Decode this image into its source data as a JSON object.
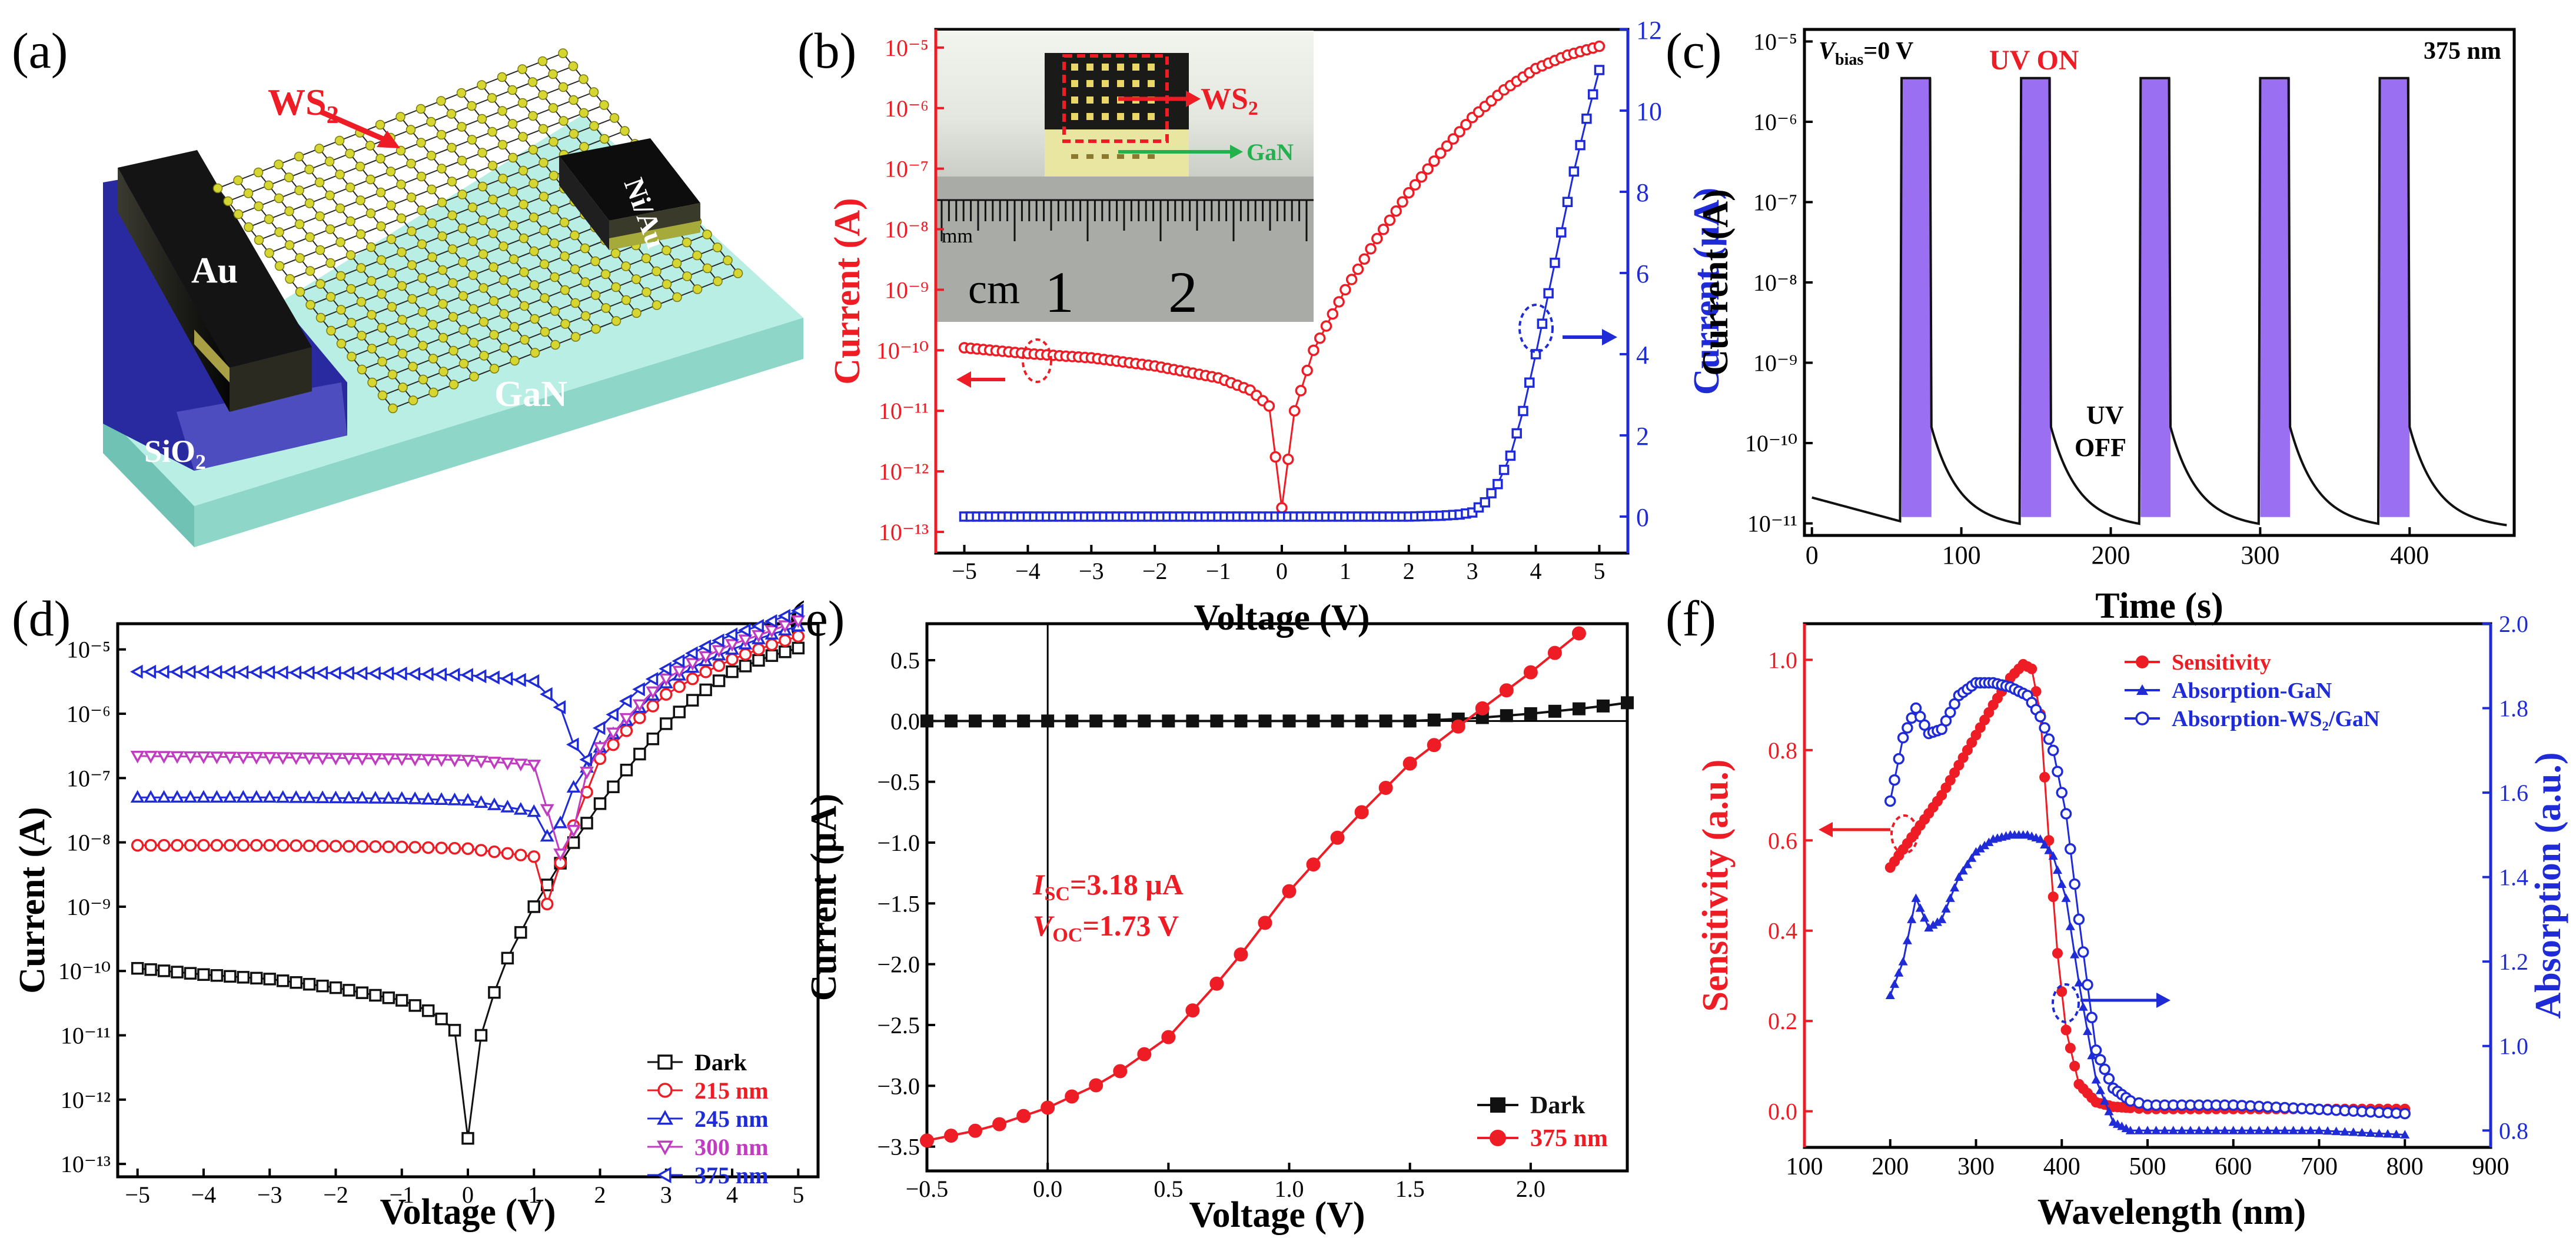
{
  "panel_labels": [
    "(a)",
    "(b)",
    "(c)",
    "(d)",
    "(e)",
    "(f)"
  ],
  "colors": {
    "red": "#ee1c25",
    "blue": "#1f2bd6",
    "magenta": "#c03cc0",
    "purple": "#9b6ff2",
    "black": "#111111",
    "gan": "#b8eee4",
    "sio2": "#2a2aa0",
    "ws2_atom": "#d6d632"
  },
  "schematic": {
    "ws2": "WS",
    "ws2_sub": "2",
    "niau": "Ni/Au",
    "au": "Au",
    "sio2": "SiO",
    "sio2_sub": "2",
    "gan": "GaN"
  },
  "chart_data": [
    {
      "panel": "(b)",
      "type": "line",
      "xlabel": "Voltage (V)",
      "ylabel_left": "Current (A)",
      "ylabel_right": "Current (μA)",
      "xlim": [
        -5,
        5
      ],
      "xticks": [
        "−5",
        "−4",
        "−3",
        "−2",
        "−1",
        "0",
        "1",
        "2",
        "3",
        "4",
        "5"
      ],
      "ylim_left_log": [
        -13,
        -5
      ],
      "yticks_left": [
        "10⁻¹³",
        "10⁻¹²",
        "10⁻¹¹",
        "10⁻¹⁰",
        "10⁻⁹",
        "10⁻⁸",
        "10⁻⁷",
        "10⁻⁶",
        "10⁻⁵"
      ],
      "ylim_right": [
        0,
        12
      ],
      "yticks_right": [
        "0",
        "2",
        "4",
        "6",
        "8",
        "10",
        "12"
      ],
      "inset": {
        "ws2": "WS",
        "ws2_sub": "2",
        "gan": "GaN",
        "mm": "mm",
        "cm": "cm",
        "one": "1",
        "two": "2"
      },
      "series": [
        {
          "name": "log current",
          "axis": "left",
          "x": [
            -5,
            -4,
            -3,
            -2,
            -1,
            -0.5,
            -0.2,
            0,
            0.2,
            0.5,
            1,
            1.5,
            2,
            2.5,
            3,
            3.5,
            4,
            4.5,
            5
          ],
          "values": [
            1.1e-10,
            8.8e-11,
            7.5e-11,
            5.5e-11,
            3.5e-11,
            2.2e-11,
            1.2e-11,
            2.5e-13,
            1e-11,
            1e-10,
            1e-09,
            7e-09,
            4e-08,
            1.8e-07,
            7e-07,
            2e-06,
            4.5e-06,
            7.5e-06,
            1.05e-05
          ]
        },
        {
          "name": "linear current",
          "axis": "right",
          "x": [
            -5,
            -2,
            0,
            2,
            2.5,
            2.8,
            3,
            3.2,
            3.4,
            3.6,
            3.8,
            4,
            4.2,
            4.4,
            4.6,
            4.8,
            5
          ],
          "values": [
            0,
            0,
            0,
            0,
            0.02,
            0.05,
            0.1,
            0.35,
            0.8,
            1.5,
            2.6,
            4,
            5.5,
            7,
            8.5,
            9.8,
            11
          ]
        }
      ]
    },
    {
      "panel": "(c)",
      "type": "line",
      "xlabel": "Time (s)",
      "ylabel": "Current (A)",
      "xlim": [
        -5,
        470
      ],
      "xticks": [
        "0",
        "100",
        "200",
        "300",
        "400"
      ],
      "ylim_log": [
        -11.15,
        -4.85
      ],
      "yticks": [
        "10⁻¹¹",
        "10⁻¹⁰",
        "10⁻⁹",
        "10⁻⁸",
        "10⁻⁷",
        "10⁻⁶",
        "10⁻⁵"
      ],
      "annotations": {
        "vbias": "V",
        "vbias_sub": "bias",
        "vbias_val": "=0 V",
        "uv_on": "UV ON",
        "wavelength": "375 nm",
        "uv_off_1": "UV",
        "uv_off_2": "OFF"
      },
      "pulses_on": [
        [
          60,
          80
        ],
        [
          140,
          160
        ],
        [
          220,
          240
        ],
        [
          300,
          320
        ],
        [
          380,
          400
        ]
      ],
      "on_current": 3.5e-06,
      "dark_current": 1.2e-11
    },
    {
      "panel": "(d)",
      "type": "line",
      "xlabel": "Voltage (V)",
      "ylabel": "Current (A)",
      "xlim": [
        -5.3,
        5.3
      ],
      "xticks": [
        "−5",
        "−4",
        "−3",
        "−2",
        "−1",
        "0",
        "1",
        "2",
        "3",
        "4",
        "5"
      ],
      "ylim_log": [
        -13.2,
        -4.6
      ],
      "yticks": [
        "10⁻¹³",
        "10⁻¹²",
        "10⁻¹¹",
        "10⁻¹⁰",
        "10⁻⁹",
        "10⁻⁸",
        "10⁻⁷",
        "10⁻⁶",
        "10⁻⁵"
      ],
      "legend_position": "bottom-right",
      "series": [
        {
          "name": "Dark",
          "x": [
            -5,
            -4,
            -3,
            -2,
            -1,
            -0.5,
            -0.2,
            0,
            0.2,
            0.5,
            1,
            1.5,
            2,
            2.5,
            3,
            3.5,
            4,
            4.5,
            5
          ],
          "values": [
            1.1e-10,
            8.8e-11,
            7.5e-11,
            5.5e-11,
            3.5e-11,
            2.2e-11,
            1.2e-11,
            2.5e-13,
            1e-11,
            1e-10,
            1e-09,
            7e-09,
            4e-08,
            1.8e-07,
            7e-07,
            2e-06,
            4.5e-06,
            7.5e-06,
            1.05e-05
          ]
        },
        {
          "name": "215 nm",
          "x": [
            -5,
            -3,
            -1,
            0,
            1,
            1.2,
            1.5,
            2,
            2.5,
            3,
            3.5,
            4,
            4.5,
            5
          ],
          "values": [
            9e-09,
            9e-09,
            8.5e-09,
            8e-09,
            6e-09,
            1.1e-09,
            1e-08,
            2e-07,
            7e-07,
            2e-06,
            4e-06,
            7e-06,
            1.1e-05,
            1.6e-05
          ]
        },
        {
          "name": "245 nm",
          "x": [
            -5,
            -3,
            -1,
            0,
            1,
            1.3,
            1.5,
            2,
            2.5,
            3,
            3.5,
            4,
            4.5,
            5
          ],
          "values": [
            5e-08,
            5e-08,
            4.8e-08,
            4.5e-08,
            3e-08,
            8e-09,
            5e-08,
            3e-07,
            1e-06,
            3e-06,
            6e-06,
            1e-05,
            1.6e-05,
            2.3e-05
          ]
        },
        {
          "name": "300 nm",
          "x": [
            -5,
            -3,
            -1,
            0,
            1,
            1.5,
            1.7,
            2,
            2.5,
            3,
            3.5,
            4,
            4.5,
            5
          ],
          "values": [
            2.2e-07,
            2.1e-07,
            2e-07,
            1.9e-07,
            1.6e-07,
            3e-09,
            8e-08,
            3e-07,
            1.1e-06,
            3.5e-06,
            7e-06,
            1.2e-05,
            1.8e-05,
            2.8e-05
          ]
        },
        {
          "name": "375 nm",
          "x": [
            -5,
            -3,
            -1,
            0,
            1,
            1.5,
            1.7,
            2,
            2.5,
            3,
            3.5,
            4,
            4.5,
            5
          ],
          "values": [
            4.5e-06,
            4.4e-06,
            4.2e-06,
            4e-06,
            3.2e-06,
            1e-06,
            1.1e-07,
            6e-07,
            2e-06,
            5e-06,
            1e-05,
            1.7e-05,
            2.5e-05,
            4e-05
          ]
        }
      ]
    },
    {
      "panel": "(e)",
      "type": "line",
      "xlabel": "Voltage (V)",
      "ylabel": "Current (μA)",
      "xlim": [
        -0.5,
        2.4
      ],
      "xticks": [
        "−0.5",
        "0.0",
        "0.5",
        "1.0",
        "1.5",
        "2.0"
      ],
      "ylim": [
        -3.7,
        0.8
      ],
      "yticks": [
        "−3.5",
        "−3.0",
        "−2.5",
        "−2.0",
        "−1.5",
        "−1.0",
        "−0.5",
        "0.0",
        "0.5"
      ],
      "legend_position": "bottom-right",
      "annotations": {
        "isc": "I",
        "isc_sub": "SC",
        "isc_val": "=3.18 μA",
        "voc": "V",
        "voc_sub": "OC",
        "voc_val": "=1.73 V"
      },
      "series": [
        {
          "name": "Dark",
          "x": [
            -0.5,
            -0.25,
            0,
            0.25,
            0.5,
            0.75,
            1,
            1.25,
            1.5,
            1.75,
            2,
            2.25,
            2.4
          ],
          "values": [
            0,
            0,
            0,
            0,
            0,
            0,
            0,
            0,
            0,
            0.02,
            0.06,
            0.11,
            0.15
          ]
        },
        {
          "name": "375 nm",
          "x": [
            -0.5,
            -0.25,
            0,
            0.25,
            0.5,
            0.75,
            1,
            1.25,
            1.5,
            1.73,
            2,
            2.2
          ],
          "values": [
            -3.45,
            -3.35,
            -3.18,
            -2.95,
            -2.6,
            -2.05,
            -1.4,
            -0.85,
            -0.35,
            0,
            0.4,
            0.72
          ]
        }
      ]
    },
    {
      "panel": "(f)",
      "type": "line",
      "xlabel": "Wavelength (nm)",
      "ylabel_left": "Sensitivity (a.u.)",
      "ylabel_right": "Absorption (a.u.)",
      "xlim": [
        100,
        900
      ],
      "xticks": [
        "100",
        "200",
        "300",
        "400",
        "500",
        "600",
        "700",
        "800",
        "900"
      ],
      "ylim_left": [
        -0.08,
        1.08
      ],
      "yticks_left": [
        "0.0",
        "0.2",
        "0.4",
        "0.6",
        "0.8",
        "1.0"
      ],
      "ylim_right": [
        0.76,
        2.0
      ],
      "yticks_right": [
        "0.8",
        "1.0",
        "1.2",
        "1.4",
        "1.6",
        "1.8",
        "2.0"
      ],
      "legend_position": "top-right",
      "series": [
        {
          "name": "Sensitivity",
          "axis": "left",
          "x": [
            200,
            230,
            260,
            290,
            320,
            340,
            355,
            365,
            375,
            385,
            395,
            405,
            420,
            440,
            460,
            500,
            600,
            700,
            800
          ],
          "values": [
            0.54,
            0.62,
            0.7,
            0.8,
            0.9,
            0.96,
            0.99,
            0.98,
            0.88,
            0.6,
            0.35,
            0.18,
            0.06,
            0.02,
            0.01,
            0.005,
            0.005,
            0.005,
            0.005
          ]
        },
        {
          "name": "Absorption-GaN",
          "axis": "right",
          "x": [
            200,
            215,
            230,
            245,
            260,
            280,
            300,
            320,
            340,
            360,
            375,
            390,
            405,
            420,
            440,
            460,
            480,
            500,
            600,
            700,
            800
          ],
          "values": [
            1.12,
            1.2,
            1.35,
            1.28,
            1.3,
            1.4,
            1.46,
            1.49,
            1.5,
            1.5,
            1.49,
            1.45,
            1.35,
            1.15,
            0.92,
            0.82,
            0.8,
            0.8,
            0.8,
            0.8,
            0.79
          ]
        },
        {
          "name": "Absorption-WS₂/GaN",
          "axis": "right",
          "x": [
            200,
            215,
            230,
            245,
            260,
            280,
            300,
            320,
            340,
            360,
            375,
            390,
            405,
            420,
            440,
            460,
            480,
            500,
            600,
            700,
            800
          ],
          "values": [
            1.58,
            1.73,
            1.8,
            1.74,
            1.75,
            1.83,
            1.86,
            1.86,
            1.85,
            1.83,
            1.78,
            1.7,
            1.55,
            1.3,
            0.99,
            0.9,
            0.87,
            0.86,
            0.86,
            0.85,
            0.84
          ]
        }
      ]
    }
  ]
}
